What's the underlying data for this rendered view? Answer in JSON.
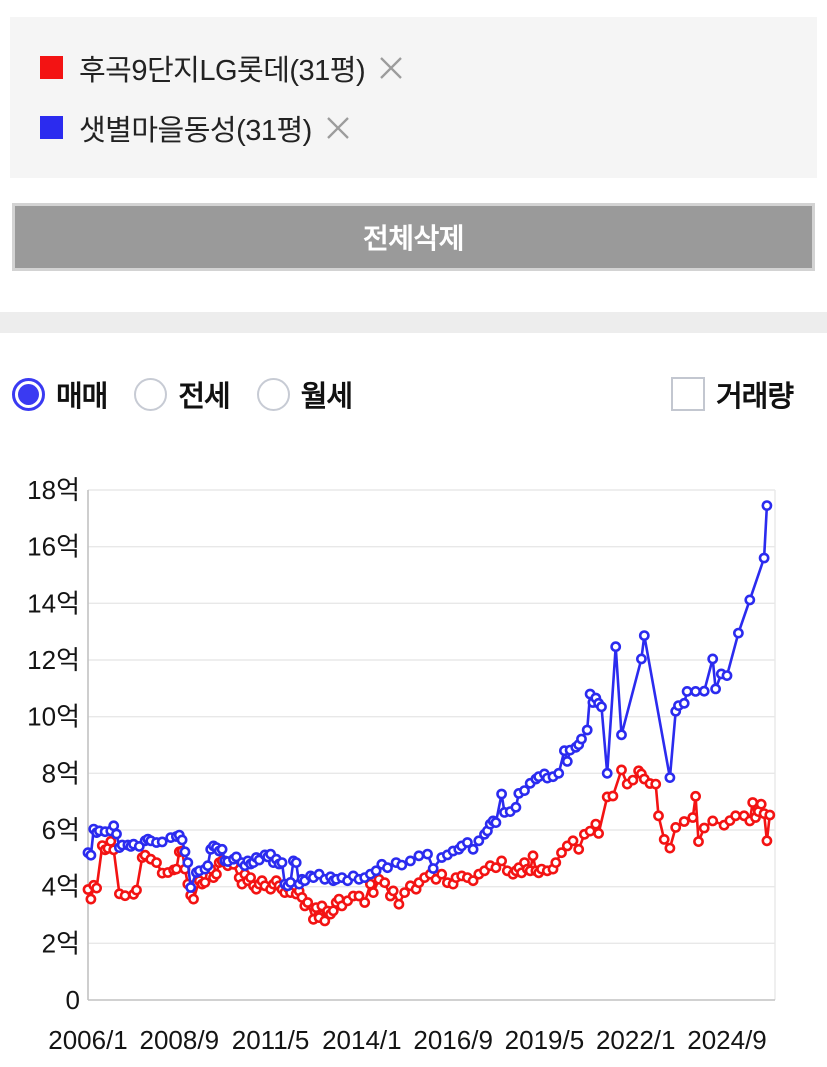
{
  "legend": {
    "items": [
      {
        "label": "후곡9단지LG롯데(31평)",
        "color": "#f31313",
        "remove_icon": "close-x"
      },
      {
        "label": "샛별마을동성(31평)",
        "color": "#2b2bef",
        "remove_icon": "close-x"
      }
    ]
  },
  "delete_all_button": {
    "label": "전체삭제"
  },
  "controls": {
    "trade_type_radios": [
      {
        "label": "매매",
        "selected": true
      },
      {
        "label": "전세",
        "selected": false
      },
      {
        "label": "월세",
        "selected": false
      }
    ],
    "volume_checkbox": {
      "label": "거래량",
      "checked": false
    },
    "accent_color": "#3a3af2"
  },
  "chart_data": {
    "type": "line",
    "unit": "억원",
    "x_unit": "months_since_2006_01",
    "x_tick_months": [
      0,
      32,
      64,
      96,
      128,
      160,
      192,
      224
    ],
    "x_tick_labels": [
      "2006/1",
      "2008/9",
      "2011/5",
      "2014/1",
      "2016/9",
      "2019/5",
      "2022/1",
      "2024/9"
    ],
    "y_ticks": [
      0,
      2,
      4,
      6,
      8,
      10,
      12,
      14,
      16,
      18
    ],
    "y_tick_labels": [
      "0",
      "2억",
      "4억",
      "6억",
      "8억",
      "10억",
      "12억",
      "14억",
      "16억",
      "18억"
    ],
    "ylim": [
      0,
      18
    ],
    "xlim": [
      0,
      241
    ],
    "grid": true,
    "legend_position": "top-panel",
    "series": [
      {
        "name": "후곡9단지LG롯데(31평)",
        "color": "#f31313",
        "points": [
          [
            0,
            3.9
          ],
          [
            1,
            3.56
          ],
          [
            2,
            4.05
          ],
          [
            3,
            3.95
          ],
          [
            5,
            5.45
          ],
          [
            6,
            5.3
          ],
          [
            7,
            5.35
          ],
          [
            8,
            5.6
          ],
          [
            9,
            5.3
          ],
          [
            11,
            3.75
          ],
          [
            13,
            3.68
          ],
          [
            16,
            3.73
          ],
          [
            17,
            3.88
          ],
          [
            19,
            5.03
          ],
          [
            20,
            5.11
          ],
          [
            22,
            4.97
          ],
          [
            24,
            4.85
          ],
          [
            26,
            4.48
          ],
          [
            28,
            4.5
          ],
          [
            30,
            4.59
          ],
          [
            31,
            4.62
          ],
          [
            32,
            5.23
          ],
          [
            33,
            5.26
          ],
          [
            34,
            4.62
          ],
          [
            35,
            4.09
          ],
          [
            36,
            3.7
          ],
          [
            37,
            3.56
          ],
          [
            39,
            4.21
          ],
          [
            40,
            4.09
          ],
          [
            41,
            4.15
          ],
          [
            42,
            4.68
          ],
          [
            43,
            4.62
          ],
          [
            44,
            4.32
          ],
          [
            45,
            4.44
          ],
          [
            46,
            4.85
          ],
          [
            47,
            4.91
          ],
          [
            49,
            4.74
          ],
          [
            51,
            4.79
          ],
          [
            53,
            4.32
          ],
          [
            54,
            4.09
          ],
          [
            55,
            4.44
          ],
          [
            56,
            4.21
          ],
          [
            57,
            4.32
          ],
          [
            58,
            4.03
          ],
          [
            59,
            3.91
          ],
          [
            60,
            4.09
          ],
          [
            61,
            4.21
          ],
          [
            62,
            4.03
          ],
          [
            64,
            3.91
          ],
          [
            65,
            4.09
          ],
          [
            66,
            4.21
          ],
          [
            67,
            4.03
          ],
          [
            68,
            3.91
          ],
          [
            69,
            3.79
          ],
          [
            70,
            3.97
          ],
          [
            71,
            3.79
          ],
          [
            73,
            3.74
          ],
          [
            74,
            3.85
          ],
          [
            75,
            3.62
          ],
          [
            76,
            3.32
          ],
          [
            77,
            3.44
          ],
          [
            79,
            2.85
          ],
          [
            80,
            3.26
          ],
          [
            81,
            2.91
          ],
          [
            82,
            3.32
          ],
          [
            83,
            2.79
          ],
          [
            84,
            3.14
          ],
          [
            85,
            3.03
          ],
          [
            86,
            3.15
          ],
          [
            87,
            3.44
          ],
          [
            88,
            3.56
          ],
          [
            89,
            3.32
          ],
          [
            91,
            3.5
          ],
          [
            93,
            3.67
          ],
          [
            95,
            3.67
          ],
          [
            97,
            3.44
          ],
          [
            99,
            4.09
          ],
          [
            100,
            3.79
          ],
          [
            102,
            4.26
          ],
          [
            104,
            4.14
          ],
          [
            106,
            3.67
          ],
          [
            107,
            3.85
          ],
          [
            109,
            3.38
          ],
          [
            111,
            3.79
          ],
          [
            113,
            4.03
          ],
          [
            115,
            3.91
          ],
          [
            116,
            4.14
          ],
          [
            118,
            4.32
          ],
          [
            120,
            4.44
          ],
          [
            122,
            4.26
          ],
          [
            124,
            4.44
          ],
          [
            126,
            4.14
          ],
          [
            128,
            4.09
          ],
          [
            129,
            4.32
          ],
          [
            131,
            4.38
          ],
          [
            133,
            4.32
          ],
          [
            135,
            4.21
          ],
          [
            137,
            4.44
          ],
          [
            139,
            4.56
          ],
          [
            141,
            4.74
          ],
          [
            143,
            4.67
          ],
          [
            145,
            4.91
          ],
          [
            147,
            4.56
          ],
          [
            149,
            4.44
          ],
          [
            150,
            4.56
          ],
          [
            151,
            4.67
          ],
          [
            152,
            4.49
          ],
          [
            153,
            4.85
          ],
          [
            154,
            4.62
          ],
          [
            155,
            4.56
          ],
          [
            156,
            5.09
          ],
          [
            157,
            4.56
          ],
          [
            158,
            4.49
          ],
          [
            159,
            4.62
          ],
          [
            161,
            4.56
          ],
          [
            163,
            4.62
          ],
          [
            164,
            4.85
          ],
          [
            166,
            5.2
          ],
          [
            168,
            5.44
          ],
          [
            170,
            5.62
          ],
          [
            172,
            5.32
          ],
          [
            174,
            5.85
          ],
          [
            176,
            5.96
          ],
          [
            178,
            6.21
          ],
          [
            179,
            5.88
          ],
          [
            182,
            7.17
          ],
          [
            184,
            7.2
          ],
          [
            187,
            8.12
          ],
          [
            189,
            7.62
          ],
          [
            191,
            7.76
          ],
          [
            193,
            8.09
          ],
          [
            194,
            7.98
          ],
          [
            195,
            7.8
          ],
          [
            197,
            7.64
          ],
          [
            199,
            7.62
          ],
          [
            200,
            6.5
          ],
          [
            202,
            5.67
          ],
          [
            204,
            5.36
          ],
          [
            206,
            6.09
          ],
          [
            209,
            6.3
          ],
          [
            212,
            6.44
          ],
          [
            213,
            7.19
          ],
          [
            214,
            5.59
          ],
          [
            216,
            6.07
          ],
          [
            219,
            6.32
          ],
          [
            223,
            6.17
          ],
          [
            225,
            6.33
          ],
          [
            227,
            6.5
          ],
          [
            230,
            6.5
          ],
          [
            232,
            6.32
          ],
          [
            233,
            6.97
          ],
          [
            234,
            6.44
          ],
          [
            235,
            6.65
          ],
          [
            236,
            6.91
          ],
          [
            237,
            6.58
          ],
          [
            238,
            5.62
          ],
          [
            239,
            6.53
          ]
        ]
      },
      {
        "name": "샛별마을동성(31평)",
        "color": "#2b2bef",
        "points": [
          [
            0,
            5.2
          ],
          [
            1,
            5.11
          ],
          [
            2,
            6.03
          ],
          [
            3,
            5.91
          ],
          [
            4,
            5.97
          ],
          [
            6,
            5.94
          ],
          [
            8,
            5.97
          ],
          [
            9,
            6.15
          ],
          [
            10,
            5.86
          ],
          [
            11,
            5.38
          ],
          [
            12,
            5.47
          ],
          [
            14,
            5.47
          ],
          [
            15,
            5.42
          ],
          [
            16,
            5.5
          ],
          [
            18,
            5.42
          ],
          [
            20,
            5.62
          ],
          [
            21,
            5.68
          ],
          [
            22,
            5.62
          ],
          [
            24,
            5.56
          ],
          [
            26,
            5.58
          ],
          [
            29,
            5.73
          ],
          [
            31,
            5.77
          ],
          [
            32,
            5.82
          ],
          [
            33,
            5.65
          ],
          [
            34,
            5.23
          ],
          [
            35,
            4.85
          ],
          [
            36,
            3.97
          ],
          [
            38,
            4.5
          ],
          [
            39,
            4.56
          ],
          [
            41,
            4.62
          ],
          [
            42,
            4.74
          ],
          [
            43,
            5.32
          ],
          [
            44,
            5.44
          ],
          [
            45,
            5.38
          ],
          [
            46,
            5.26
          ],
          [
            47,
            5.32
          ],
          [
            48,
            4.91
          ],
          [
            49,
            4.89
          ],
          [
            51,
            4.97
          ],
          [
            52,
            5.05
          ],
          [
            54,
            4.85
          ],
          [
            55,
            4.74
          ],
          [
            56,
            4.91
          ],
          [
            57,
            4.8
          ],
          [
            58,
            4.85
          ],
          [
            59,
            5.03
          ],
          [
            60,
            4.94
          ],
          [
            62,
            5.12
          ],
          [
            63,
            5.05
          ],
          [
            64,
            5.15
          ],
          [
            65,
            4.85
          ],
          [
            66,
            4.97
          ],
          [
            67,
            4.8
          ],
          [
            68,
            4.85
          ],
          [
            69,
            4.09
          ],
          [
            70,
            4.03
          ],
          [
            71,
            4.15
          ],
          [
            72,
            4.91
          ],
          [
            73,
            4.85
          ],
          [
            74,
            4.09
          ],
          [
            75,
            4.26
          ],
          [
            76,
            4.21
          ],
          [
            78,
            4.38
          ],
          [
            79,
            4.32
          ],
          [
            81,
            4.44
          ],
          [
            83,
            4.26
          ],
          [
            85,
            4.35
          ],
          [
            86,
            4.21
          ],
          [
            87,
            4.26
          ],
          [
            89,
            4.32
          ],
          [
            91,
            4.21
          ],
          [
            93,
            4.38
          ],
          [
            95,
            4.26
          ],
          [
            97,
            4.32
          ],
          [
            99,
            4.44
          ],
          [
            101,
            4.56
          ],
          [
            103,
            4.79
          ],
          [
            105,
            4.67
          ],
          [
            108,
            4.85
          ],
          [
            110,
            4.76
          ],
          [
            113,
            4.91
          ],
          [
            116,
            5.09
          ],
          [
            119,
            5.15
          ],
          [
            121,
            4.64
          ],
          [
            124,
            5.03
          ],
          [
            126,
            5.12
          ],
          [
            128,
            5.26
          ],
          [
            130,
            5.32
          ],
          [
            131,
            5.44
          ],
          [
            133,
            5.56
          ],
          [
            135,
            5.32
          ],
          [
            137,
            5.62
          ],
          [
            139,
            5.85
          ],
          [
            140,
            5.97
          ],
          [
            141,
            6.21
          ],
          [
            142,
            6.32
          ],
          [
            143,
            6.26
          ],
          [
            145,
            7.27
          ],
          [
            146,
            6.62
          ],
          [
            148,
            6.65
          ],
          [
            150,
            6.8
          ],
          [
            151,
            7.29
          ],
          [
            153,
            7.39
          ],
          [
            155,
            7.65
          ],
          [
            157,
            7.8
          ],
          [
            158,
            7.88
          ],
          [
            160,
            7.98
          ],
          [
            161,
            7.83
          ],
          [
            163,
            7.88
          ],
          [
            165,
            8.0
          ],
          [
            167,
            8.8
          ],
          [
            168,
            8.42
          ],
          [
            169,
            8.82
          ],
          [
            171,
            8.92
          ],
          [
            172,
            9.01
          ],
          [
            173,
            9.21
          ],
          [
            175,
            9.53
          ],
          [
            176,
            10.8
          ],
          [
            177,
            10.5
          ],
          [
            178,
            10.66
          ],
          [
            179,
            10.47
          ],
          [
            180,
            10.35
          ],
          [
            182,
            8.0
          ],
          [
            185,
            12.47
          ],
          [
            187,
            9.36
          ],
          [
            194,
            12.04
          ],
          [
            195,
            12.86
          ],
          [
            204,
            7.85
          ],
          [
            206,
            10.19
          ],
          [
            207,
            10.39
          ],
          [
            209,
            10.47
          ],
          [
            210,
            10.89
          ],
          [
            213,
            10.89
          ],
          [
            216,
            10.9
          ],
          [
            219,
            12.04
          ],
          [
            220,
            10.98
          ],
          [
            222,
            11.51
          ],
          [
            224,
            11.45
          ],
          [
            228,
            12.95
          ],
          [
            232,
            14.12
          ],
          [
            237,
            15.6
          ],
          [
            238,
            17.45
          ]
        ]
      }
    ]
  }
}
